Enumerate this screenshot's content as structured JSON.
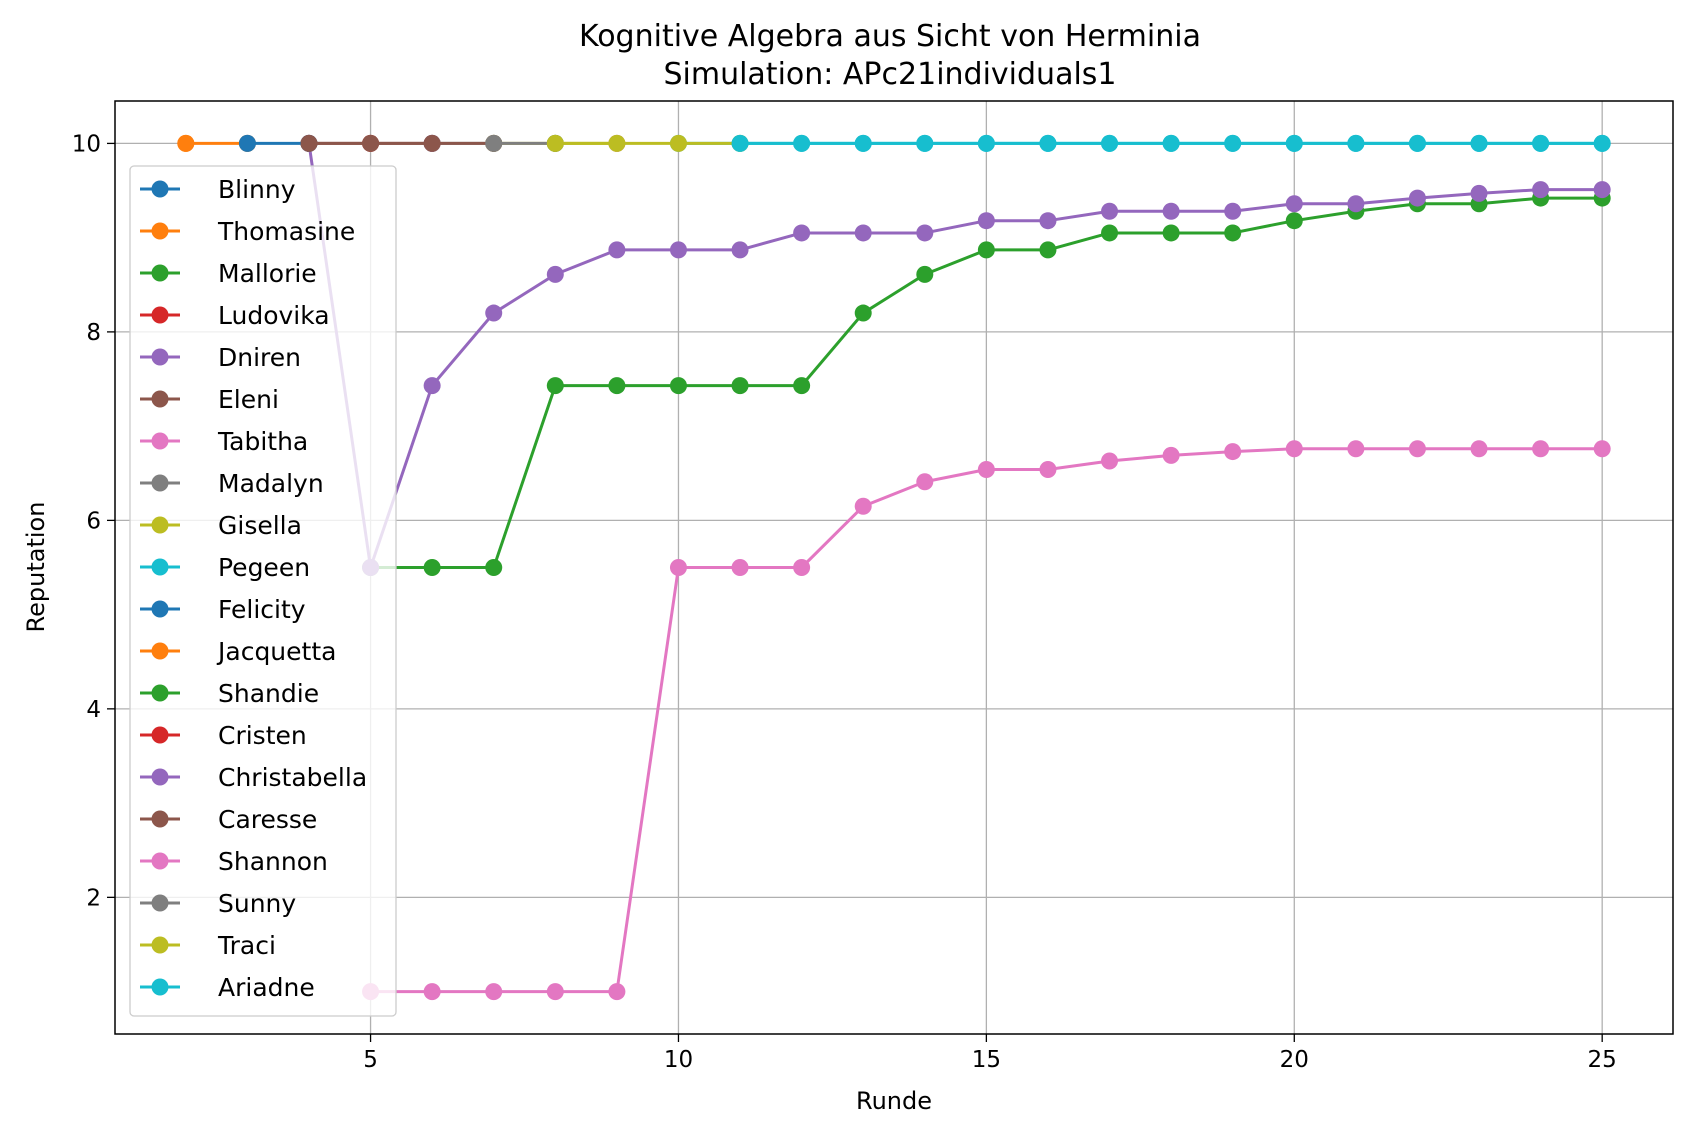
{
  "chart_data": {
    "type": "line",
    "title": "Kognitive Algebra aus Sicht von Herminia",
    "subtitle": "Simulation: APc21individuals1",
    "xlabel": "Runde",
    "ylabel": "Reputation",
    "xlim": [
      0.85,
      26.15
    ],
    "ylim": [
      0.55,
      10.45
    ],
    "xticks": [
      5,
      10,
      15,
      20,
      25
    ],
    "yticks": [
      2,
      4,
      6,
      8,
      10
    ],
    "grid": true,
    "legend_position": "upper-left",
    "series": [
      {
        "name": "Blinny",
        "color": "#1f77b4",
        "x": [
          3
        ],
        "y": [
          10
        ]
      },
      {
        "name": "Thomasine",
        "color": "#ff7f0e",
        "x": [
          2,
          3
        ],
        "y": [
          10,
          10
        ]
      },
      {
        "name": "Mallorie",
        "color": "#2ca02c",
        "x": [
          5,
          6,
          7,
          8,
          9,
          10,
          11,
          12,
          13,
          14,
          15,
          16,
          17,
          18,
          19,
          20,
          21,
          22,
          23,
          24,
          25
        ],
        "y": [
          5.5,
          5.5,
          5.5,
          7.43,
          7.43,
          7.43,
          7.43,
          7.43,
          8.2,
          8.61,
          8.87,
          8.87,
          9.05,
          9.05,
          9.05,
          9.18,
          9.28,
          9.36,
          9.36,
          9.42,
          9.42
        ]
      },
      {
        "name": "Ludovika",
        "color": "#d62728",
        "x": [
          4
        ],
        "y": [
          10
        ]
      },
      {
        "name": "Dniren",
        "color": "#9467bd",
        "x": [
          4,
          5,
          6,
          7,
          8,
          9,
          10,
          11,
          12,
          13,
          14,
          15,
          16,
          17,
          18,
          19,
          20,
          21,
          22,
          23,
          24,
          25
        ],
        "y": [
          10,
          5.5,
          7.43,
          8.2,
          8.61,
          8.87,
          8.87,
          8.87,
          9.05,
          9.05,
          9.05,
          9.18,
          9.18,
          9.28,
          9.28,
          9.28,
          9.36,
          9.36,
          9.42,
          9.47,
          9.51,
          9.51
        ]
      },
      {
        "name": "Eleni",
        "color": "#8c564b",
        "x": [
          4,
          5,
          6
        ],
        "y": [
          10,
          10,
          10
        ]
      },
      {
        "name": "Tabitha",
        "color": "#e377c2",
        "x": [
          5,
          6,
          7,
          8,
          9,
          10,
          11,
          12,
          13,
          14,
          15,
          16,
          17,
          18,
          19,
          20,
          21,
          22,
          23,
          24,
          25
        ],
        "y": [
          1,
          1,
          1,
          1,
          1,
          5.5,
          5.5,
          5.5,
          6.15,
          6.41,
          6.54,
          6.54,
          6.63,
          6.69,
          6.73,
          6.76,
          6.76,
          6.76,
          6.76,
          6.76,
          6.76
        ]
      },
      {
        "name": "Madalyn",
        "color": "#7f7f7f",
        "x": [
          6,
          7
        ],
        "y": [
          10,
          10
        ]
      },
      {
        "name": "Gisella",
        "color": "#bcbd22",
        "x": [
          7,
          8,
          9
        ],
        "y": [
          10,
          10,
          10
        ]
      },
      {
        "name": "Pegeen",
        "color": "#17becf",
        "x": [
          10,
          11,
          12,
          13,
          14,
          15,
          16,
          17,
          18,
          19,
          20,
          21,
          22,
          23,
          24,
          25
        ],
        "y": [
          10,
          10,
          10,
          10,
          10,
          10,
          10,
          10,
          10,
          10,
          10,
          10,
          10,
          10,
          10,
          10
        ]
      },
      {
        "name": "Felicity",
        "color": "#1f77b4",
        "x": [
          3,
          4
        ],
        "y": [
          10,
          10
        ]
      },
      {
        "name": "Jacquetta",
        "color": "#ff7f0e",
        "x": [
          2
        ],
        "y": [
          10
        ]
      },
      {
        "name": "Shandie",
        "color": "#2ca02c",
        "x": [
          8
        ],
        "y": [
          10
        ]
      },
      {
        "name": "Cristen",
        "color": "#d62728",
        "x": [
          5
        ],
        "y": [
          10
        ]
      },
      {
        "name": "Christabella",
        "color": "#9467bd",
        "x": [
          6
        ],
        "y": [
          10
        ]
      },
      {
        "name": "Caresse",
        "color": "#8c564b",
        "x": [
          4,
          5,
          6,
          7
        ],
        "y": [
          10,
          10,
          10,
          10
        ]
      },
      {
        "name": "Shannon",
        "color": "#e377c2",
        "x": [
          9
        ],
        "y": [
          10
        ]
      },
      {
        "name": "Sunny",
        "color": "#7f7f7f",
        "x": [
          7,
          8
        ],
        "y": [
          10,
          10
        ]
      },
      {
        "name": "Traci",
        "color": "#bcbd22",
        "x": [
          8,
          9,
          10,
          11
        ],
        "y": [
          10,
          10,
          10,
          10
        ]
      },
      {
        "name": "Ariadne",
        "color": "#17becf",
        "x": [
          11,
          12,
          13,
          14,
          15,
          16,
          17,
          18,
          19,
          20,
          21,
          22,
          23,
          24,
          25
        ],
        "y": [
          10,
          10,
          10,
          10,
          10,
          10,
          10,
          10,
          10,
          10,
          10,
          10,
          10,
          10,
          10
        ]
      }
    ]
  }
}
